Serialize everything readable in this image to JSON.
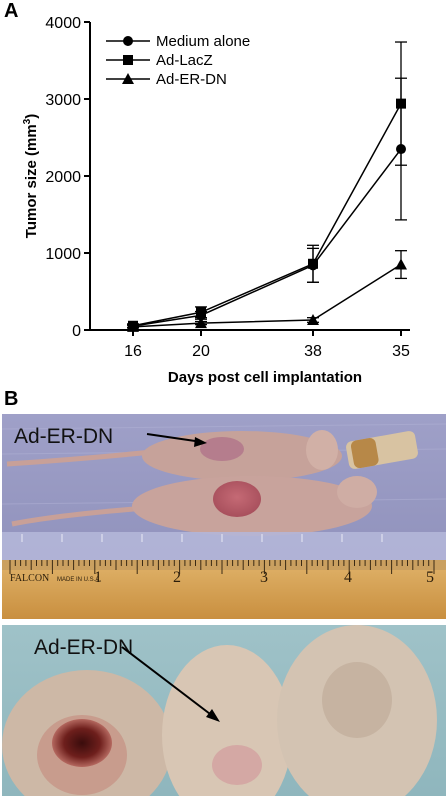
{
  "panels": {
    "a_label": "A",
    "b_label": "B"
  },
  "chart_data": {
    "type": "line",
    "xlabel": "Days post cell implantation",
    "ylabel": "Tumor size (mm",
    "ylabel_sup": "3",
    "ylabel_close": ")",
    "categories": [
      "16",
      "20",
      "38",
      "35"
    ],
    "ylim": [
      0,
      4000
    ],
    "yticks": [
      0,
      1000,
      2000,
      3000,
      4000
    ],
    "grid": false,
    "legend_position": "top-left",
    "series": [
      {
        "name": "Medium alone",
        "marker": "circle",
        "values": [
          50,
          190,
          840,
          2350
        ],
        "errors": [
          20,
          50,
          220,
          920
        ]
      },
      {
        "name": "Ad-LacZ",
        "marker": "square",
        "values": [
          55,
          230,
          860,
          2940
        ],
        "errors": [
          25,
          70,
          240,
          800
        ]
      },
      {
        "name": "Ad-ER-DN",
        "marker": "triangle",
        "values": [
          40,
          90,
          130,
          850
        ],
        "errors": [
          15,
          20,
          30,
          180
        ]
      }
    ]
  },
  "photos": {
    "top_callout": "Ad-ER-DN",
    "bottom_callout": "Ad-ER-DN",
    "ruler_brand": "FALCON",
    "ruler_sub": "MADE IN U.S.A.",
    "ruler_numbers": [
      "1",
      "2",
      "3",
      "4",
      "5"
    ]
  }
}
